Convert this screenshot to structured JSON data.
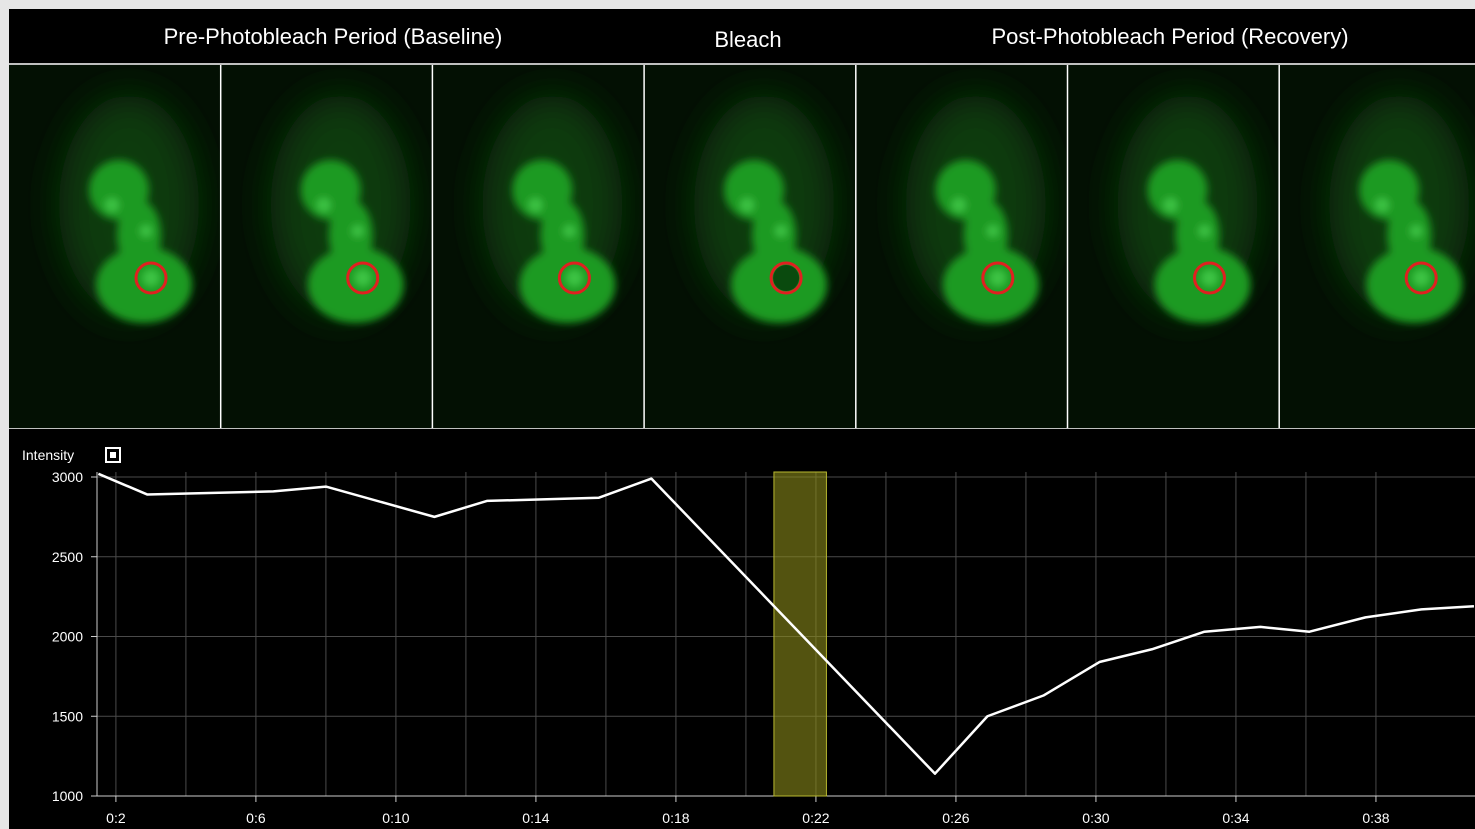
{
  "header": {
    "labels": [
      "Pre-Photobleach Period (Baseline)",
      "Bleach",
      "Post-Photobleach Period (Recovery)"
    ]
  },
  "chart_data": {
    "type": "line",
    "y_label": "Intensity",
    "color": "#ffffff",
    "x": [
      1.5,
      2.9,
      6.5,
      8,
      11.1,
      12.6,
      15.8,
      17.3,
      25.4,
      26.9,
      28.5,
      30.1,
      31.6,
      33.1,
      34.7,
      36.1,
      37.7,
      39.3,
      40.8
    ],
    "values": [
      3020,
      2890,
      2910,
      2940,
      2750,
      2850,
      2870,
      2990,
      1140,
      1500,
      1630,
      1840,
      1920,
      2030,
      2060,
      2030,
      2120,
      2170,
      2190
    ],
    "xlim": [
      1.46,
      40.83
    ],
    "ylim": [
      1000,
      3000
    ],
    "xticks": [
      {
        "value": 2,
        "label": "0:2"
      },
      {
        "value": 6,
        "label": "0:6"
      },
      {
        "value": 10,
        "label": "0:10"
      },
      {
        "value": 14,
        "label": "0:14"
      },
      {
        "value": 18,
        "label": "0:18"
      },
      {
        "value": 22,
        "label": "0:22"
      },
      {
        "value": 26,
        "label": "0:26"
      },
      {
        "value": 30,
        "label": "0:30"
      },
      {
        "value": 34,
        "label": "0:34"
      },
      {
        "value": 38,
        "label": "0:38"
      }
    ],
    "yticks": [
      1000,
      1500,
      2000,
      2500,
      3000
    ],
    "grid": true,
    "highlight": [
      20.8,
      22.3
    ],
    "highlight_color": "#8a8a1a"
  }
}
